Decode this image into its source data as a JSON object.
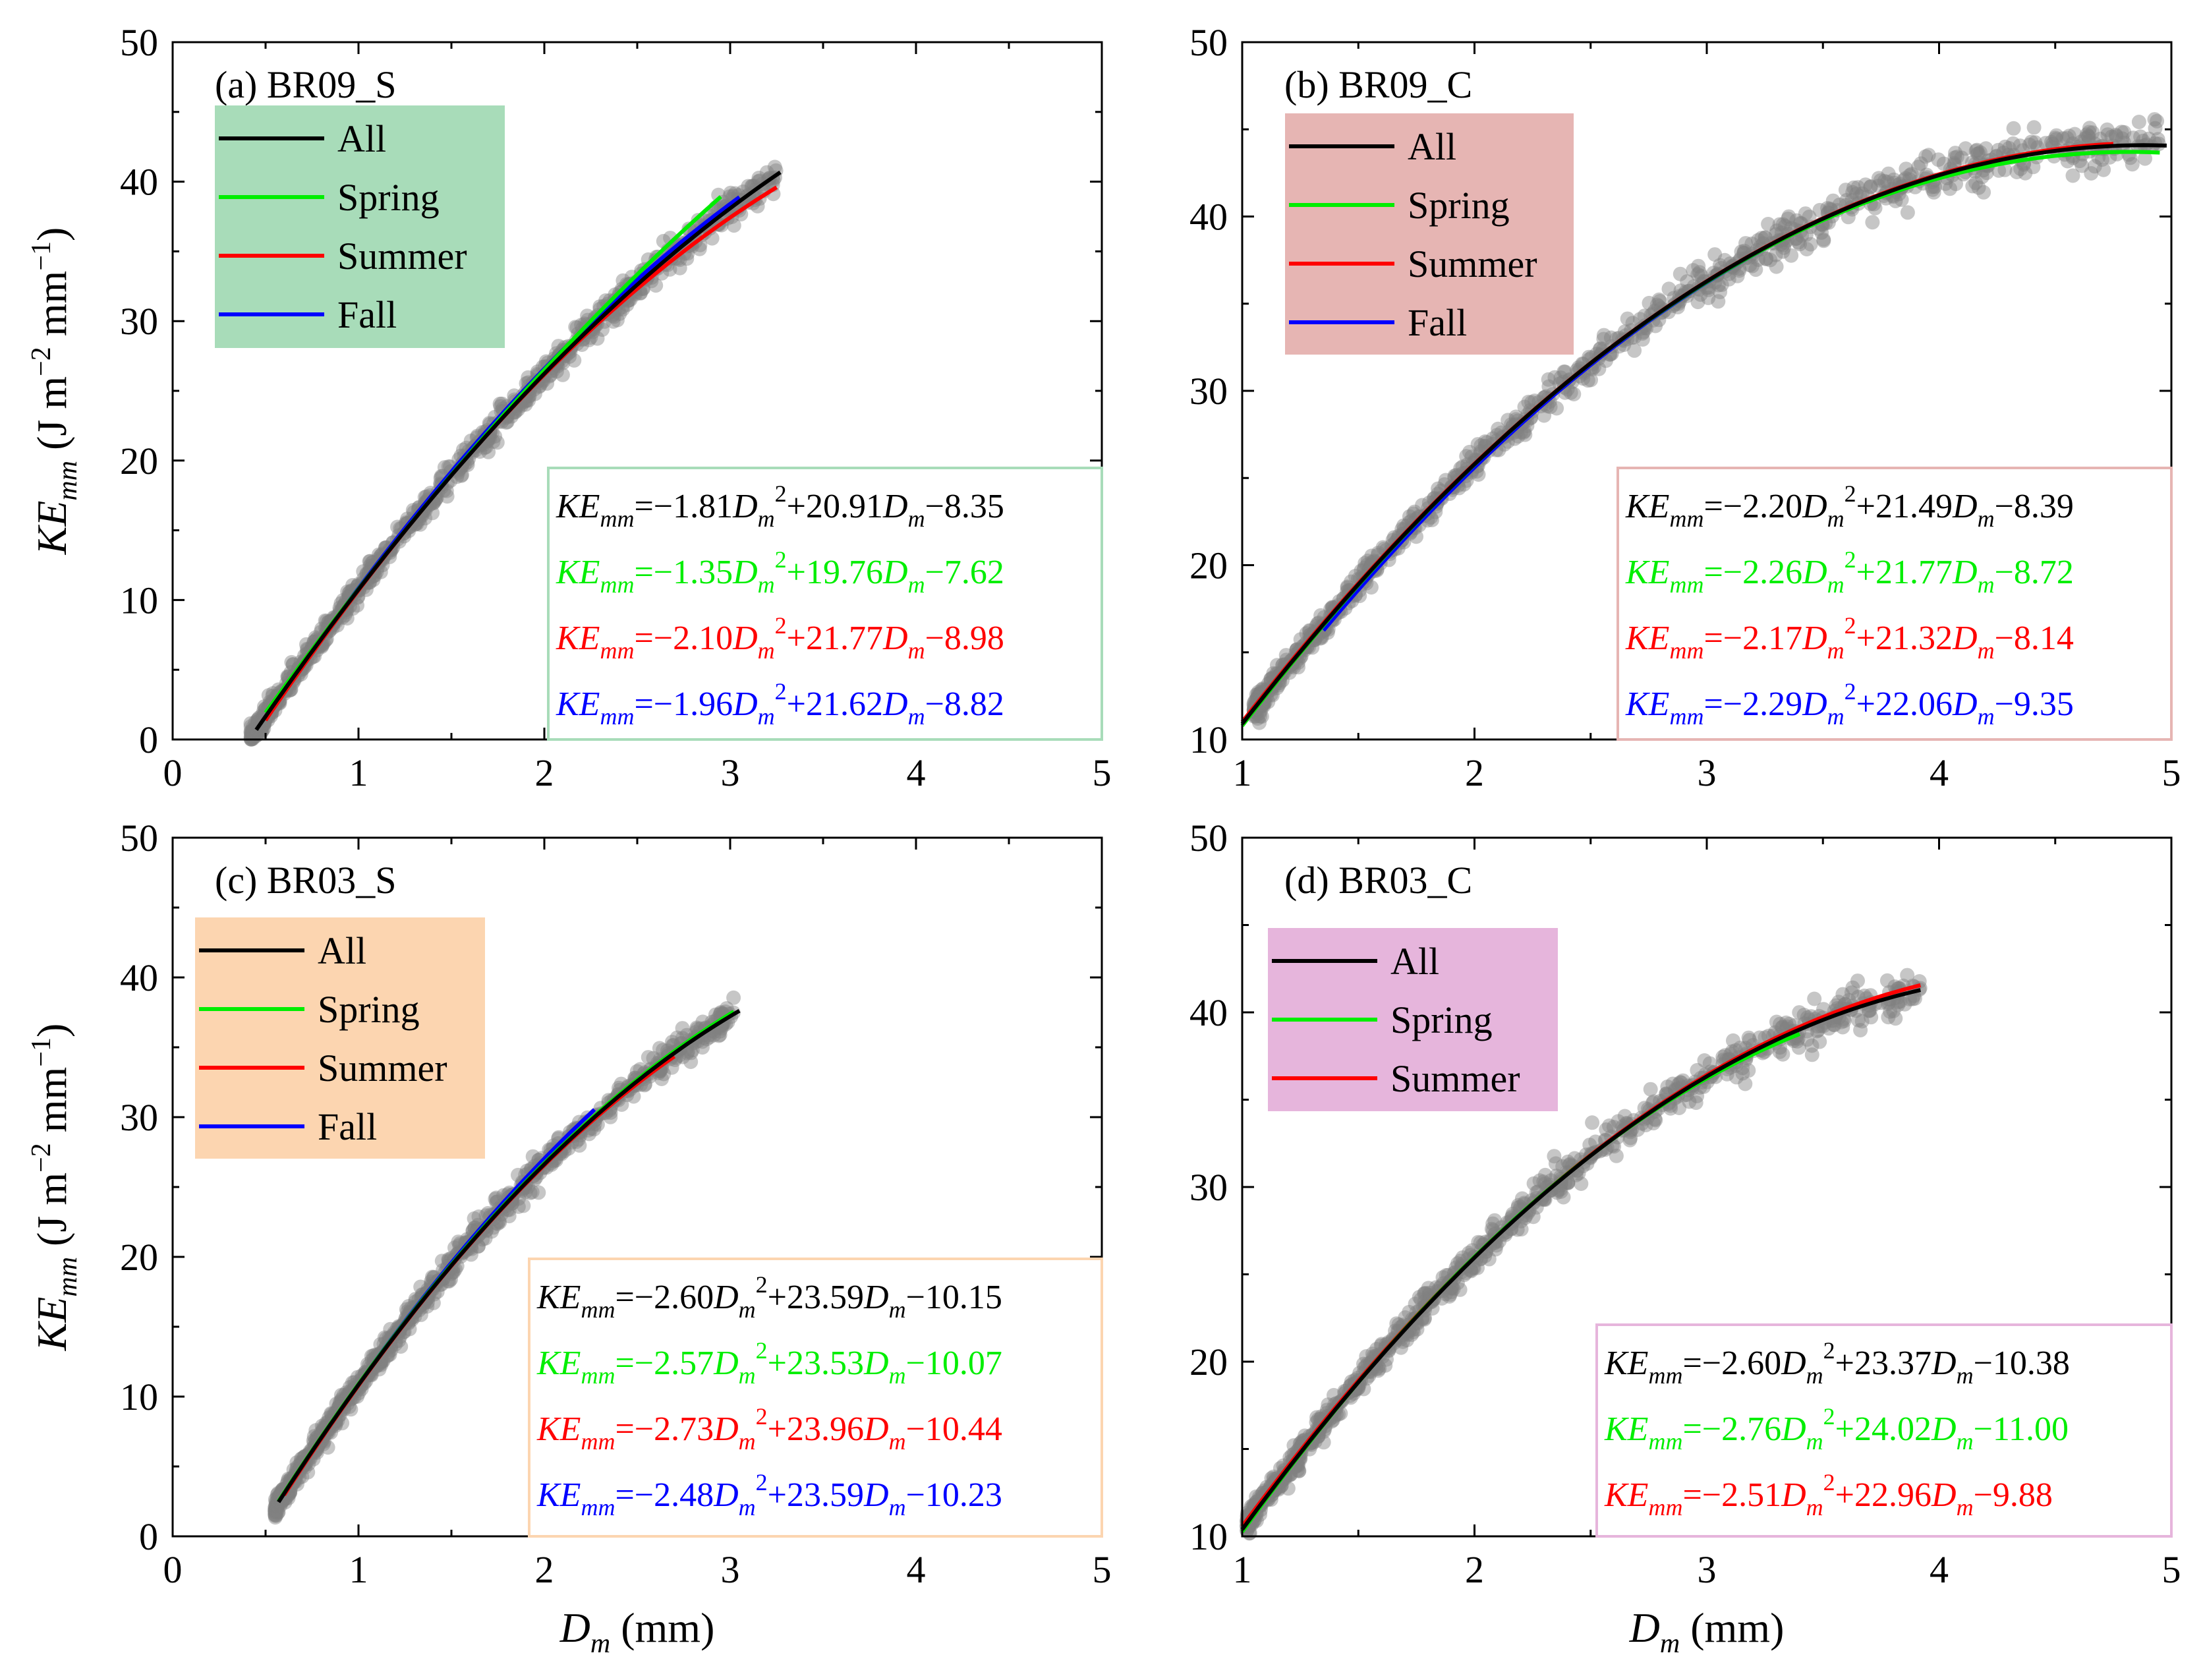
{
  "figure": {
    "y_axis_label": {
      "main": "KE",
      "sub": "mm",
      "unit": " (J m",
      "sup1": "−2",
      "mid": " mm",
      "sup2": "−1",
      "close": ")"
    },
    "x_axis_label": {
      "main": "D",
      "sub": "m",
      "unit": " (mm)"
    }
  },
  "colors": {
    "All": "#000000",
    "Spring": "#00ee00",
    "Summer": "#ff0000",
    "Fall": "#0000ff",
    "scatter": "#808080"
  },
  "chart_data": [
    {
      "panel_label": "(a) BR09_S",
      "type": "scatter",
      "xlim": [
        0,
        5
      ],
      "ylim": [
        0,
        50
      ],
      "xticks": [
        "0",
        "1",
        "2",
        "3",
        "4",
        "5"
      ],
      "yticks": [
        "0",
        "10",
        "20",
        "30",
        "40",
        "50"
      ],
      "legend_bg": "#a8dcb9",
      "eq_bg": "#a8dcb9",
      "legend": [
        "All",
        "Spring",
        "Summer",
        "Fall"
      ],
      "scatter_range": [
        0.42,
        3.25
      ],
      "fits": [
        {
          "name": "All",
          "a": -1.81,
          "b": 20.91,
          "c": -8.35,
          "xrange": [
            0.45,
            3.27
          ]
        },
        {
          "name": "Spring",
          "a": -1.35,
          "b": 19.76,
          "c": -7.62,
          "xrange": [
            0.5,
            2.95
          ]
        },
        {
          "name": "Summer",
          "a": -2.1,
          "b": 21.77,
          "c": -8.98,
          "xrange": [
            0.5,
            3.25
          ]
        },
        {
          "name": "Fall",
          "a": -1.96,
          "b": 21.62,
          "c": -8.82,
          "xrange": [
            0.5,
            3.05
          ]
        }
      ],
      "equations": [
        {
          "name": "All",
          "pre": "KE",
          "sub": "mm",
          "c1": "=−1.81",
          "mid": "+20.91",
          "end": "−8.35"
        },
        {
          "name": "Spring",
          "pre": "KE",
          "sub": "mm",
          "c1": "=−1.35",
          "mid": "+19.76",
          "end": "−7.62"
        },
        {
          "name": "Summer",
          "pre": "KE",
          "sub": "mm",
          "c1": "=−2.10",
          "mid": "+21.77",
          "end": "−8.98"
        },
        {
          "name": "Fall",
          "pre": "KE",
          "sub": "mm",
          "c1": "=−1.96",
          "mid": "+21.62",
          "end": "−8.82"
        }
      ]
    },
    {
      "panel_label": "(b) BR09_C",
      "type": "scatter",
      "xlim": [
        1,
        5
      ],
      "ylim": [
        10,
        50
      ],
      "xticks": [
        "1",
        "2",
        "3",
        "4",
        "5"
      ],
      "yticks": [
        "10",
        "20",
        "30",
        "40",
        "50"
      ],
      "legend_bg": "#e6b5b3",
      "eq_bg": "#e6b5b3",
      "legend": [
        "All",
        "Spring",
        "Summer",
        "Fall"
      ],
      "scatter_range": [
        1.05,
        4.95
      ],
      "fits": [
        {
          "name": "All",
          "a": -2.2,
          "b": 21.49,
          "c": -8.39,
          "xrange": [
            1.0,
            4.98
          ]
        },
        {
          "name": "Spring",
          "a": -2.26,
          "b": 21.77,
          "c": -8.72,
          "xrange": [
            1.0,
            4.95
          ]
        },
        {
          "name": "Summer",
          "a": -2.17,
          "b": 21.32,
          "c": -8.14,
          "xrange": [
            1.0,
            4.75
          ]
        },
        {
          "name": "Fall",
          "a": -2.29,
          "b": 22.06,
          "c": -9.35,
          "xrange": [
            1.35,
            4.0
          ]
        }
      ],
      "equations": [
        {
          "name": "All",
          "pre": "KE",
          "sub": "mm",
          "c1": "=−2.20",
          "mid": "+21.49",
          "end": "−8.39"
        },
        {
          "name": "Spring",
          "pre": "KE",
          "sub": "mm",
          "c1": "=−2.26",
          "mid": "+21.77",
          "end": "−8.72"
        },
        {
          "name": "Summer",
          "pre": "KE",
          "sub": "mm",
          "c1": "=−2.17",
          "mid": "+21.32",
          "end": "−8.14"
        },
        {
          "name": "Fall",
          "pre": "KE",
          "sub": "mm",
          "c1": "=−2.29",
          "mid": "+22.06",
          "end": "−9.35"
        }
      ]
    },
    {
      "panel_label": "(c) BR03_S",
      "type": "scatter",
      "xlim": [
        0,
        5
      ],
      "ylim": [
        0,
        50
      ],
      "xticks": [
        "0",
        "1",
        "2",
        "3",
        "4",
        "5"
      ],
      "yticks": [
        "0",
        "10",
        "20",
        "30",
        "40",
        "50"
      ],
      "legend_bg": "#fcd5b0",
      "eq_bg": "#fcd5b0",
      "legend": [
        "All",
        "Spring",
        "Summer",
        "Fall"
      ],
      "scatter_range": [
        0.55,
        3.02
      ],
      "fits": [
        {
          "name": "All",
          "a": -2.6,
          "b": 23.59,
          "c": -10.15,
          "xrange": [
            0.57,
            3.05
          ]
        },
        {
          "name": "Spring",
          "a": -2.57,
          "b": 23.53,
          "c": -10.07,
          "xrange": [
            0.57,
            3.02
          ]
        },
        {
          "name": "Summer",
          "a": -2.73,
          "b": 23.96,
          "c": -10.44,
          "xrange": [
            0.6,
            2.7
          ]
        },
        {
          "name": "Fall",
          "a": -2.48,
          "b": 23.59,
          "c": -10.23,
          "xrange": [
            0.62,
            2.27
          ]
        }
      ],
      "equations": [
        {
          "name": "All",
          "pre": "KE",
          "sub": "mm",
          "c1": "=−2.60",
          "mid": "+23.59",
          "end": "−10.15"
        },
        {
          "name": "Spring",
          "pre": "KE",
          "sub": "mm",
          "c1": "=−2.57",
          "mid": "+23.53",
          "end": "−10.07"
        },
        {
          "name": "Summer",
          "pre": "KE",
          "sub": "mm",
          "c1": "=−2.73",
          "mid": "+23.96",
          "end": "−10.44"
        },
        {
          "name": "Fall",
          "pre": "KE",
          "sub": "mm",
          "c1": "=−2.48",
          "mid": "+23.59",
          "end": "−10.23"
        }
      ]
    },
    {
      "panel_label": "(d) BR03_C",
      "type": "scatter",
      "xlim": [
        1,
        5
      ],
      "ylim": [
        10,
        50
      ],
      "xticks": [
        "1",
        "2",
        "3",
        "4",
        "5"
      ],
      "yticks": [
        "10",
        "20",
        "30",
        "40",
        "50"
      ],
      "legend_bg": "#e6b5dc",
      "eq_bg": "#e6b5dc",
      "legend": [
        "All",
        "Spring",
        "Summer"
      ],
      "scatter_range": [
        1.02,
        3.92
      ],
      "fits": [
        {
          "name": "All",
          "a": -2.6,
          "b": 23.37,
          "c": -10.38,
          "xrange": [
            1.0,
            3.92
          ]
        },
        {
          "name": "Spring",
          "a": -2.76,
          "b": 24.02,
          "c": -11.0,
          "xrange": [
            1.0,
            3.4
          ]
        },
        {
          "name": "Summer",
          "a": -2.51,
          "b": 22.96,
          "c": -9.88,
          "xrange": [
            1.0,
            3.92
          ]
        }
      ],
      "equations": [
        {
          "name": "All",
          "pre": "KE",
          "sub": "mm",
          "c1": "=−2.60",
          "mid": "+23.37",
          "end": "−10.38"
        },
        {
          "name": "Spring",
          "pre": "KE",
          "sub": "mm",
          "c1": "=−2.76",
          "mid": "+24.02",
          "end": "−11.00"
        },
        {
          "name": "Summer",
          "pre": "KE",
          "sub": "mm",
          "c1": "=−2.51",
          "mid": "+22.96",
          "end": "−9.88"
        }
      ]
    }
  ]
}
